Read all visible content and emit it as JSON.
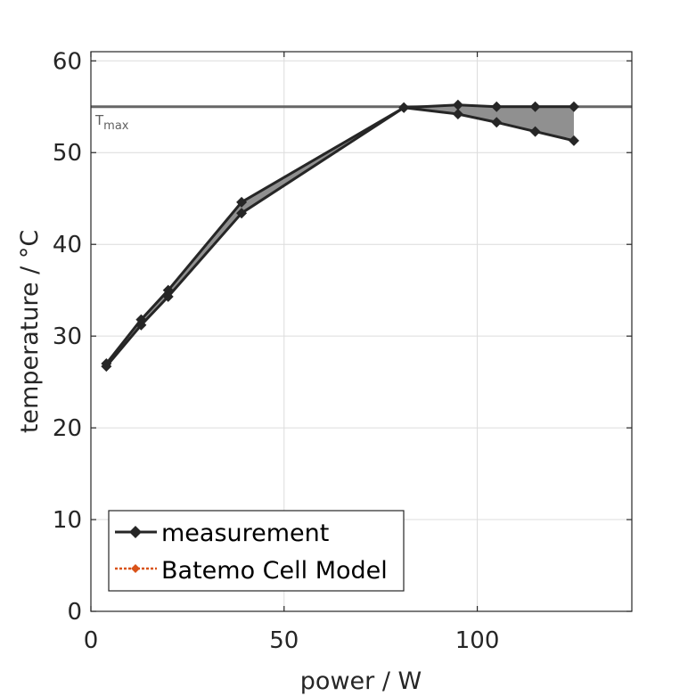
{
  "chart_data": {
    "type": "line",
    "title": "",
    "xlabel": "power / W",
    "ylabel": "temperature / °C",
    "xlim": [
      0,
      140
    ],
    "ylim": [
      0,
      61
    ],
    "xticks": [
      0,
      50,
      100
    ],
    "yticks": [
      0,
      10,
      20,
      30,
      40,
      50,
      60
    ],
    "grid": true,
    "legend_position": "bottom-left",
    "threshold": {
      "value": 55,
      "label_main": "T",
      "label_sub": "max",
      "color": "#666666"
    },
    "series": [
      {
        "name": "measurement",
        "color": "#262626",
        "marker": "diamond",
        "line_style": "solid",
        "x": [
          4,
          13,
          20,
          39,
          81,
          95,
          105,
          115,
          125
        ],
        "y_upper": [
          27.0,
          31.8,
          35.0,
          44.6,
          54.9,
          55.2,
          55.0,
          55.0,
          55.0
        ],
        "y_lower": [
          26.7,
          31.2,
          34.3,
          43.4,
          54.9,
          54.2,
          53.3,
          52.3,
          51.3
        ],
        "band_color": "#909090"
      },
      {
        "name": "Batemo Cell Model",
        "color": "#d95319",
        "marker": "diamond",
        "line_style": "dotted",
        "x": [],
        "y": []
      }
    ]
  }
}
